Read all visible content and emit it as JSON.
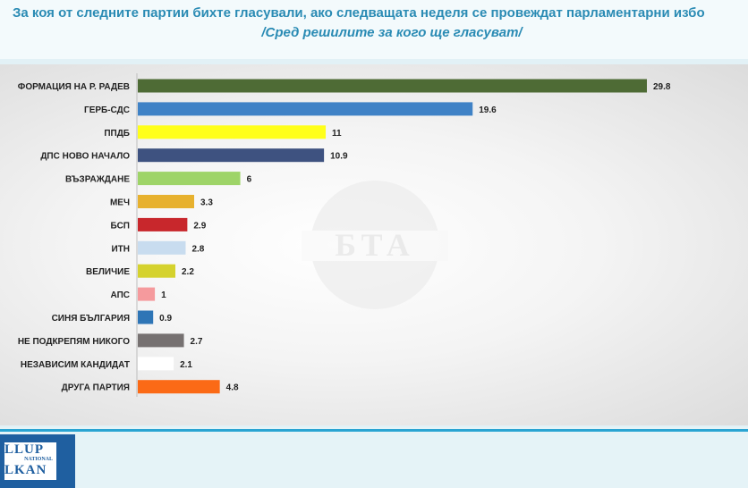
{
  "header": {
    "title": "За коя от следните партии бихте  гласували,  ако следващата неделя се провеждат парламентарни избо",
    "subtitle": "/Сред решилите за кого ще гласуват/"
  },
  "watermark": {
    "text": "БТА"
  },
  "logo": {
    "line1": "LLUP",
    "line2": "NATIONAL",
    "line3": "LKAN"
  },
  "chart_data": {
    "type": "bar",
    "orientation": "horizontal",
    "categories": [
      "ФОРМАЦИЯ НА Р. РАДЕВ",
      "ГЕРБ-СДС",
      "ППДБ",
      "ДПС НОВО НАЧАЛО",
      "ВЪЗРАЖДАНЕ",
      "МЕЧ",
      "БСП",
      "ИТН",
      "ВЕЛИЧИЕ",
      "АПС",
      "СИНЯ БЪЛГАРИЯ",
      "НЕ ПОДКРЕПЯМ НИКОГО",
      "НЕЗАВИСИМ КАНДИДАТ",
      "ДРУГА ПАРТИЯ"
    ],
    "values": [
      29.8,
      19.6,
      11,
      10.9,
      6,
      3.3,
      2.9,
      2.8,
      2.2,
      1,
      0.9,
      2.7,
      2.1,
      4.8
    ],
    "value_labels": [
      "29.8",
      "19.6",
      "11",
      "10.9",
      "6",
      "3.3",
      "2.9",
      "2.8",
      "2.2",
      "1",
      "0.9",
      "2.7",
      "2.1",
      "4.8"
    ],
    "colors": [
      "#4e6b35",
      "#3f82c6",
      "#ffff1a",
      "#3e5280",
      "#9ed468",
      "#e7b12e",
      "#c8272c",
      "#c8dcef",
      "#d5d22e",
      "#f59a9d",
      "#2e75b6",
      "#767171",
      "#ffffff",
      "#fb6a16"
    ],
    "xlim": [
      0,
      30
    ],
    "grid": false,
    "legend": "none",
    "title": "",
    "xlabel": "",
    "ylabel": ""
  }
}
